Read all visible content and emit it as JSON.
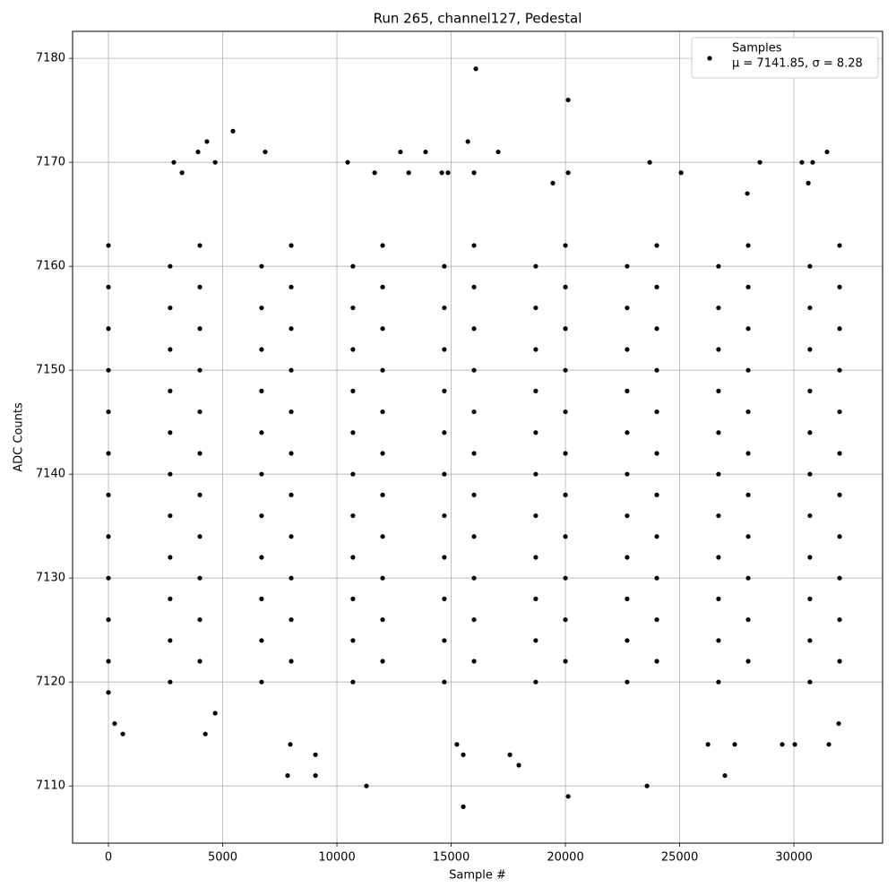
{
  "chart_data": {
    "type": "scatter",
    "title": "Run 265, channel127, Pedestal",
    "x_label": "Sample #",
    "y_label": "ADC Counts",
    "grid": true,
    "legend_position": "upper right",
    "series": [
      {
        "name": "Samples",
        "legend_note": "μ = 7141.85, σ = 8.28",
        "color": "#000000",
        "x": [
          0,
          0,
          0,
          0,
          0,
          0,
          0,
          0,
          0,
          0,
          0,
          2700,
          2700,
          2700,
          2700,
          2700,
          2700,
          2700,
          2700,
          2700,
          2700,
          2700,
          4000,
          4000,
          4000,
          4000,
          4000,
          4000,
          4000,
          4000,
          4000,
          4000,
          4000,
          6700,
          6700,
          6700,
          6700,
          6700,
          6700,
          6700,
          6700,
          6700,
          6700,
          6700,
          8000,
          8000,
          8000,
          8000,
          8000,
          8000,
          8000,
          8000,
          8000,
          8000,
          8000,
          10700,
          10700,
          10700,
          10700,
          10700,
          10700,
          10700,
          10700,
          10700,
          10700,
          10700,
          12000,
          12000,
          12000,
          12000,
          12000,
          12000,
          12000,
          12000,
          12000,
          12000,
          12000,
          14700,
          14700,
          14700,
          14700,
          14700,
          14700,
          14700,
          14700,
          14700,
          14700,
          14700,
          16000,
          16000,
          16000,
          16000,
          16000,
          16000,
          16000,
          16000,
          16000,
          16000,
          16000,
          18700,
          18700,
          18700,
          18700,
          18700,
          18700,
          18700,
          18700,
          18700,
          18700,
          18700,
          20000,
          20000,
          20000,
          20000,
          20000,
          20000,
          20000,
          20000,
          20000,
          20000,
          20000,
          22700,
          22700,
          22700,
          22700,
          22700,
          22700,
          22700,
          22700,
          22700,
          22700,
          22700,
          24000,
          24000,
          24000,
          24000,
          24000,
          24000,
          24000,
          24000,
          24000,
          24000,
          24000,
          26700,
          26700,
          26700,
          26700,
          26700,
          26700,
          26700,
          26700,
          26700,
          26700,
          26700,
          28000,
          28000,
          28000,
          28000,
          28000,
          28000,
          28000,
          28000,
          28000,
          28000,
          28000,
          30700,
          30700,
          30700,
          30700,
          30700,
          30700,
          30700,
          30700,
          30700,
          30700,
          30700,
          32000,
          32000,
          32000,
          32000,
          32000,
          32000,
          32000,
          32000,
          32000,
          32000,
          32000,
          0,
          270,
          630,
          2860,
          3220,
          3920,
          4310,
          4240,
          4670,
          4670,
          5450,
          6860,
          7840,
          7960,
          9060,
          9060,
          10470,
          11290,
          11650,
          12780,
          13140,
          13880,
          14590,
          14860,
          15250,
          15530,
          15530,
          15730,
          16080,
          16000,
          17060,
          17570,
          17960,
          19450,
          20120,
          20120,
          20120,
          23570,
          23690,
          25060,
          26240,
          26980,
          27410,
          27960,
          28510,
          29490,
          30040,
          30350,
          30630,
          30820,
          31450,
          31530,
          31960
        ],
        "y": [
          7122,
          7126,
          7130,
          7134,
          7138,
          7142,
          7146,
          7150,
          7154,
          7158,
          7162,
          7124,
          7128,
          7132,
          7136,
          7140,
          7144,
          7148,
          7152,
          7156,
          7160,
          7120,
          7122,
          7126,
          7130,
          7134,
          7138,
          7142,
          7146,
          7150,
          7154,
          7158,
          7162,
          7124,
          7128,
          7132,
          7136,
          7140,
          7144,
          7148,
          7152,
          7156,
          7160,
          7120,
          7122,
          7126,
          7130,
          7134,
          7138,
          7142,
          7146,
          7150,
          7154,
          7158,
          7162,
          7124,
          7128,
          7132,
          7136,
          7140,
          7144,
          7148,
          7152,
          7156,
          7160,
          7120,
          7122,
          7126,
          7130,
          7134,
          7138,
          7142,
          7146,
          7150,
          7154,
          7158,
          7162,
          7124,
          7128,
          7132,
          7136,
          7140,
          7144,
          7148,
          7152,
          7156,
          7160,
          7120,
          7122,
          7126,
          7130,
          7134,
          7138,
          7142,
          7146,
          7150,
          7154,
          7158,
          7162,
          7124,
          7128,
          7132,
          7136,
          7140,
          7144,
          7148,
          7152,
          7156,
          7160,
          7120,
          7122,
          7126,
          7130,
          7134,
          7138,
          7142,
          7146,
          7150,
          7154,
          7158,
          7162,
          7124,
          7128,
          7132,
          7136,
          7140,
          7144,
          7148,
          7152,
          7156,
          7160,
          7120,
          7122,
          7126,
          7130,
          7134,
          7138,
          7142,
          7146,
          7150,
          7154,
          7158,
          7162,
          7124,
          7128,
          7132,
          7136,
          7140,
          7144,
          7148,
          7152,
          7156,
          7160,
          7120,
          7122,
          7126,
          7130,
          7134,
          7138,
          7142,
          7146,
          7150,
          7154,
          7158,
          7162,
          7124,
          7128,
          7132,
          7136,
          7140,
          7144,
          7148,
          7152,
          7156,
          7160,
          7120,
          7122,
          7126,
          7130,
          7134,
          7138,
          7142,
          7146,
          7150,
          7154,
          7158,
          7162,
          7119,
          7116,
          7115,
          7170,
          7169,
          7171,
          7172,
          7115,
          7170,
          7117,
          7173,
          7171,
          7111,
          7114,
          7111,
          7113,
          7170,
          7110,
          7169,
          7171,
          7169,
          7171,
          7169,
          7169,
          7114,
          7108,
          7113,
          7172,
          7179,
          7169,
          7171,
          7113,
          7112,
          7168,
          7176,
          7109,
          7169,
          7110,
          7170,
          7169,
          7114,
          7111,
          7114,
          7167,
          7170,
          7114,
          7114,
          7170,
          7168,
          7170,
          7171,
          7114,
          7116
        ]
      }
    ],
    "xlim": [
      -1570,
      33880
    ],
    "xticks": [
      0,
      5000,
      10000,
      15000,
      20000,
      25000,
      30000
    ],
    "ylim": [
      7104.5,
      7182.6
    ],
    "yticks": [
      7110,
      7120,
      7130,
      7140,
      7150,
      7160,
      7170,
      7180
    ]
  }
}
